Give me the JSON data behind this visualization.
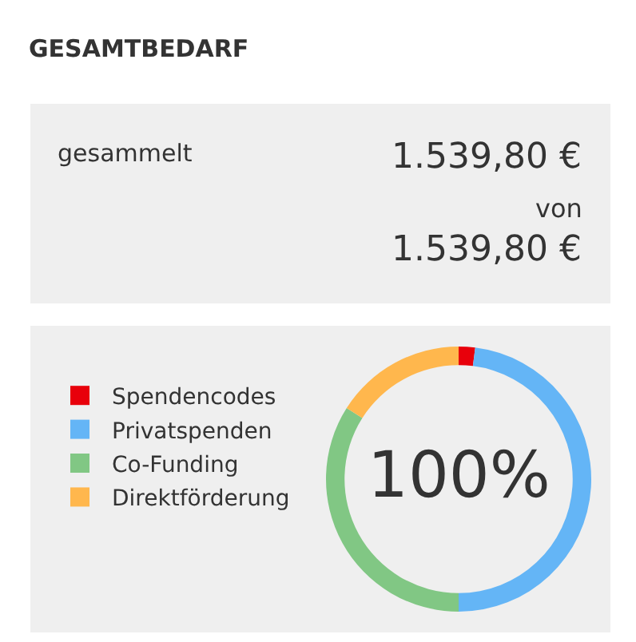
{
  "chart_data": {
    "type": "donut",
    "title": "GESAMTBEDARF",
    "categories": [
      "Spendencodes",
      "Privatspenden",
      "Co-Funding",
      "Direktförderung"
    ],
    "values": [
      2,
      48,
      34,
      16
    ],
    "colors": [
      "#e8000b",
      "#64b5f6",
      "#81c784",
      "#ffb74d"
    ],
    "annotations": [
      "gesammelt",
      "1.539,80 €",
      "von",
      "1.539,80 €",
      "100%"
    ],
    "legend": "left"
  }
}
